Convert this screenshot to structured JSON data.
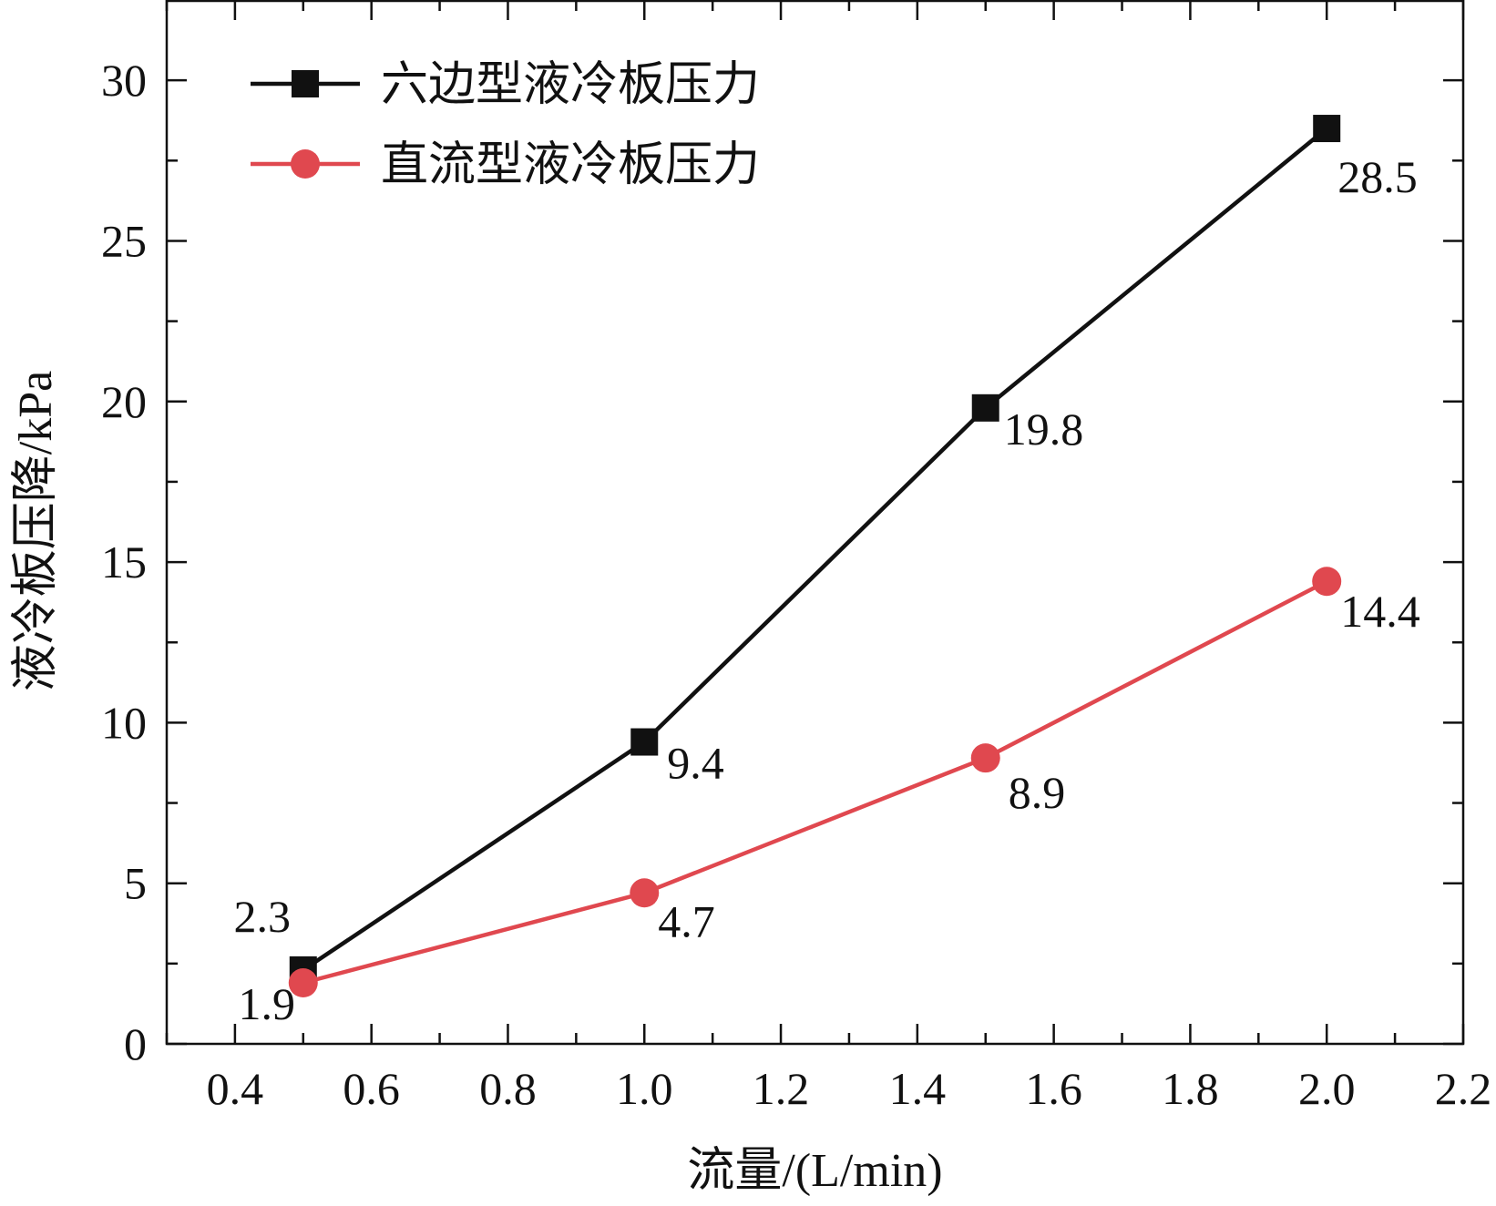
{
  "chart_data": {
    "type": "line",
    "title": "",
    "xlabel": "流量/(L/min)",
    "ylabel": "液冷板压降/kPa",
    "xlim": [
      0.3,
      2.2
    ],
    "ylim": [
      0,
      32.5
    ],
    "x_ticks": [
      "0.4",
      "0.6",
      "0.8",
      "1.0",
      "1.2",
      "1.4",
      "1.6",
      "1.8",
      "2.0",
      "2.2"
    ],
    "y_ticks": [
      "0",
      "5",
      "10",
      "15",
      "20",
      "25",
      "30"
    ],
    "grid": false,
    "legend_position": "top-left",
    "x": [
      0.5,
      1.0,
      1.5,
      2.0
    ],
    "series": [
      {
        "name": "六边型液冷板压力",
        "values": [
          2.3,
          9.4,
          19.8,
          28.5
        ],
        "labels": [
          "2.3",
          "9.4",
          "19.8",
          "28.5"
        ],
        "color": "#111111",
        "marker": "square"
      },
      {
        "name": "直流型液冷板压力",
        "values": [
          1.9,
          4.7,
          8.9,
          14.4
        ],
        "labels": [
          "1.9",
          "4.7",
          "8.9",
          "14.4"
        ],
        "color": "#e0484f",
        "marker": "circle"
      }
    ]
  }
}
